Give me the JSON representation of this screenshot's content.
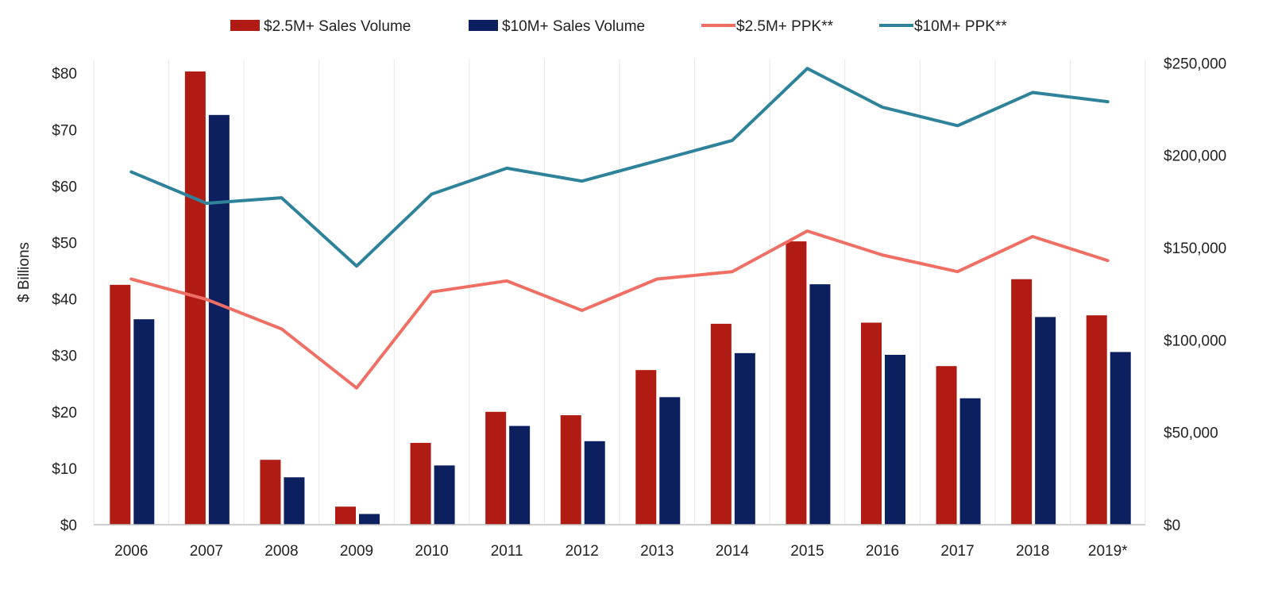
{
  "chart_data": {
    "type": "bar",
    "categories": [
      "2006",
      "2007",
      "2008",
      "2009",
      "2010",
      "2011",
      "2012",
      "2013",
      "2014",
      "2015",
      "2016",
      "2017",
      "2018",
      "2019*"
    ],
    "ylabel": "$ Billions",
    "ylim": [
      0,
      80
    ],
    "y_ticks": [
      "$0",
      "$10",
      "$20",
      "$30",
      "$40",
      "$50",
      "$60",
      "$70",
      "$80"
    ],
    "y2lim": [
      0,
      250000
    ],
    "y2_ticks": [
      "$0",
      "$50,000",
      "$100,000",
      "$150,000",
      "$200,000",
      "$250,000"
    ],
    "grid": "vertical",
    "legend_position": "top",
    "series": [
      {
        "name": "$2.5M+ Sales Volume",
        "type": "bar",
        "axis": "left",
        "color": "#b01c14",
        "values": [
          42.5,
          80.3,
          11.5,
          3.2,
          14.5,
          20.0,
          19.4,
          27.4,
          35.6,
          50.2,
          35.8,
          28.1,
          43.5,
          37.1
        ]
      },
      {
        "name": "$10M+ Sales Volume",
        "type": "bar",
        "axis": "left",
        "color": "#0c1f5e",
        "values": [
          36.4,
          72.6,
          8.4,
          1.9,
          10.5,
          17.5,
          14.8,
          22.6,
          30.4,
          42.6,
          30.1,
          22.4,
          36.8,
          30.6
        ]
      },
      {
        "name": "$2.5M+ PPK**",
        "type": "line",
        "axis": "right",
        "color": "#f06f64",
        "values": [
          133000,
          122000,
          106000,
          74000,
          126000,
          132000,
          116000,
          133000,
          137000,
          159000,
          146000,
          137000,
          156000,
          143000
        ]
      },
      {
        "name": "$10M+ PPK**",
        "type": "line",
        "axis": "right",
        "color": "#2e839b",
        "values": [
          191000,
          174000,
          177000,
          140000,
          179000,
          193000,
          186000,
          197000,
          208000,
          247000,
          226000,
          216000,
          234000,
          229000
        ]
      }
    ]
  }
}
